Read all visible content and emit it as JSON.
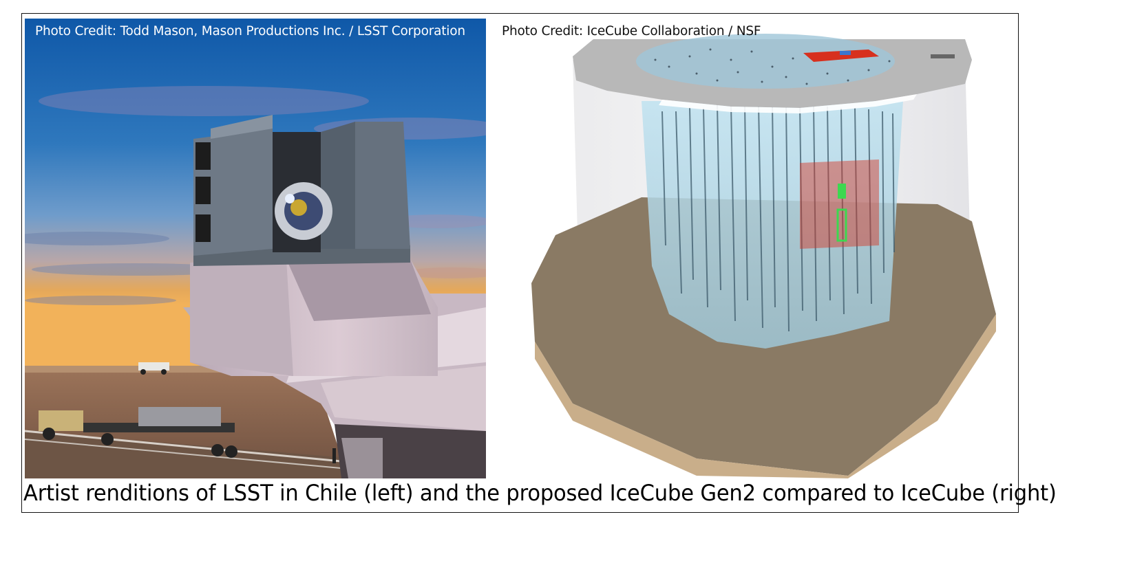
{
  "figure": {
    "left_credit": "Photo Credit: Todd Mason, Mason Productions Inc. / LSST Corporation",
    "right_credit": "Photo Credit: IceCube Collaboration / NSF",
    "caption": "Artist renditions of LSST in Chile (left) and the proposed IceCube Gen2 compared to IceCube (right)"
  },
  "colors": {
    "border": "#111111",
    "sky_top": "#1760b0",
    "sky_horizon": "#e8a450",
    "ground": "#8a6a50",
    "building": "#d8c9d0",
    "ice_top": "#b8b8b8",
    "ice_water": "#9fc6d8",
    "bedrock": "#8a7a64",
    "highlight_red": "#d7301e",
    "highlight_green": "#3dd850"
  }
}
